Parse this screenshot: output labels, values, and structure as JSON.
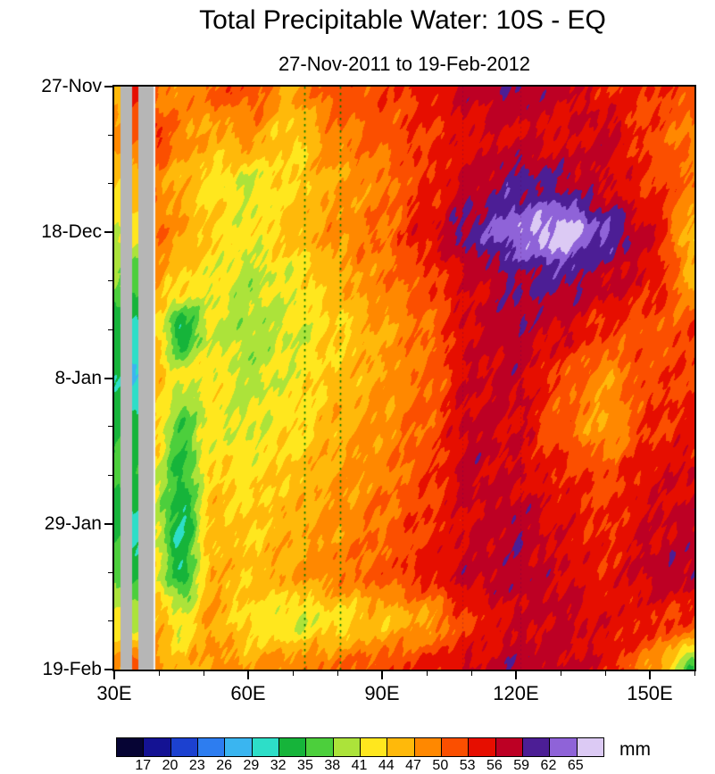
{
  "chart_data": {
    "type": "heatmap",
    "title": "Total Precipitable Water: 10S - EQ",
    "subtitle": "27-Nov-2011 to 19-Feb-2012",
    "units": "mm",
    "x_axis": {
      "range": [
        30,
        160
      ],
      "ticks": [
        {
          "value": 30,
          "label": "30E"
        },
        {
          "value": 60,
          "label": "60E"
        },
        {
          "value": 90,
          "label": "90E"
        },
        {
          "value": 120,
          "label": "120E"
        },
        {
          "value": 150,
          "label": "150E"
        }
      ],
      "minor": [
        40,
        50,
        70,
        80,
        100,
        110,
        130,
        140,
        160
      ]
    },
    "y_axis": {
      "range_days": [
        0,
        84
      ],
      "ticks": [
        {
          "day": 0,
          "label": "27-Nov"
        },
        {
          "day": 21,
          "label": "18-Dec"
        },
        {
          "day": 42,
          "label": "8-Jan"
        },
        {
          "day": 63,
          "label": "29-Jan"
        },
        {
          "day": 84,
          "label": "19-Feb"
        }
      ],
      "minor_days": [
        7,
        14,
        28,
        35,
        49,
        56,
        70,
        77
      ]
    },
    "levels": [
      17,
      20,
      23,
      26,
      29,
      32,
      35,
      38,
      41,
      44,
      47,
      50,
      53,
      56,
      59,
      62,
      65
    ],
    "palette": [
      "#060434",
      "#141293",
      "#1c41d0",
      "#2d7df0",
      "#3ab5f0",
      "#2ddec8",
      "#16b43a",
      "#4ccf3c",
      "#ace33a",
      "#ffe71e",
      "#ffb90a",
      "#ff8800",
      "#fb4f00",
      "#e60e00",
      "#bd0024",
      "#4c1e95",
      "#8f63d8",
      "#dccaf4"
    ],
    "missing_color": "#b6b6b6",
    "grid": {
      "lon": [
        39,
        45,
        52,
        60,
        70,
        80,
        90,
        100,
        110,
        120,
        130,
        140,
        150,
        160
      ],
      "day": [
        0,
        7,
        14,
        21,
        28,
        35,
        42,
        49,
        56,
        63,
        70,
        77,
        84
      ],
      "values": [
        [
          50,
          48,
          51,
          52,
          47,
          52,
          52,
          54,
          57,
          59,
          57,
          54,
          53,
          52
        ],
        [
          53,
          49,
          46,
          48,
          44,
          49,
          51,
          53,
          55,
          56,
          55,
          57,
          52,
          49
        ],
        [
          49,
          46,
          43,
          41,
          44,
          47,
          49,
          53,
          57,
          60,
          59,
          56,
          53,
          50
        ],
        [
          50,
          47,
          44,
          42,
          45,
          48,
          50,
          55,
          60,
          64,
          67,
          62,
          56,
          45
        ],
        [
          47,
          44,
          42,
          40,
          42,
          46,
          49,
          52,
          56,
          59,
          60,
          57,
          55,
          47
        ],
        [
          44,
          33,
          41,
          39,
          41,
          44,
          47,
          50,
          56,
          58,
          56,
          53,
          51,
          52
        ],
        [
          46,
          41,
          43,
          40,
          42,
          45,
          47,
          50,
          56,
          57,
          52,
          48,
          52,
          53
        ],
        [
          44,
          36,
          42,
          41,
          43,
          46,
          48,
          51,
          57,
          56,
          51,
          47,
          53,
          54
        ],
        [
          42,
          34,
          44,
          43,
          45,
          47,
          49,
          52,
          57,
          56,
          54,
          52,
          55,
          56
        ],
        [
          40,
          32,
          45,
          44,
          46,
          48,
          50,
          53,
          56,
          58,
          55,
          53,
          56,
          57
        ],
        [
          43,
          33,
          46,
          45,
          47,
          49,
          51,
          54,
          57,
          58,
          56,
          54,
          57,
          58
        ],
        [
          46,
          42,
          47,
          43,
          41,
          43,
          45,
          47,
          53,
          56,
          57,
          55,
          54,
          52
        ],
        [
          48,
          45,
          48,
          47,
          49,
          50,
          52,
          54,
          56,
          58,
          57,
          55,
          48,
          36
        ]
      ]
    },
    "coastal_columns": [
      {
        "lon_from": 30.0,
        "lon_to": 31.5,
        "values": [
          46,
          48,
          44,
          41,
          38,
          33,
          32,
          34,
          36,
          34,
          37,
          42,
          48
        ]
      },
      {
        "lon_from": 34.0,
        "lon_to": 35.5,
        "values": [
          54,
          50,
          46,
          42,
          36,
          31,
          29,
          33,
          35,
          31,
          34,
          40,
          52
        ]
      }
    ],
    "land_strips": [
      {
        "lon_from": 31.5,
        "lon_to": 34.0
      },
      {
        "lon_from": 35.5,
        "lon_to": 39.0
      }
    ],
    "reference_lines": [
      {
        "lon": 72.5,
        "color": "#007700"
      },
      {
        "lon": 80.5,
        "color": "#007700"
      }
    ],
    "artifact_lines": [
      {
        "lon": 108
      },
      {
        "lon": 121
      }
    ]
  }
}
